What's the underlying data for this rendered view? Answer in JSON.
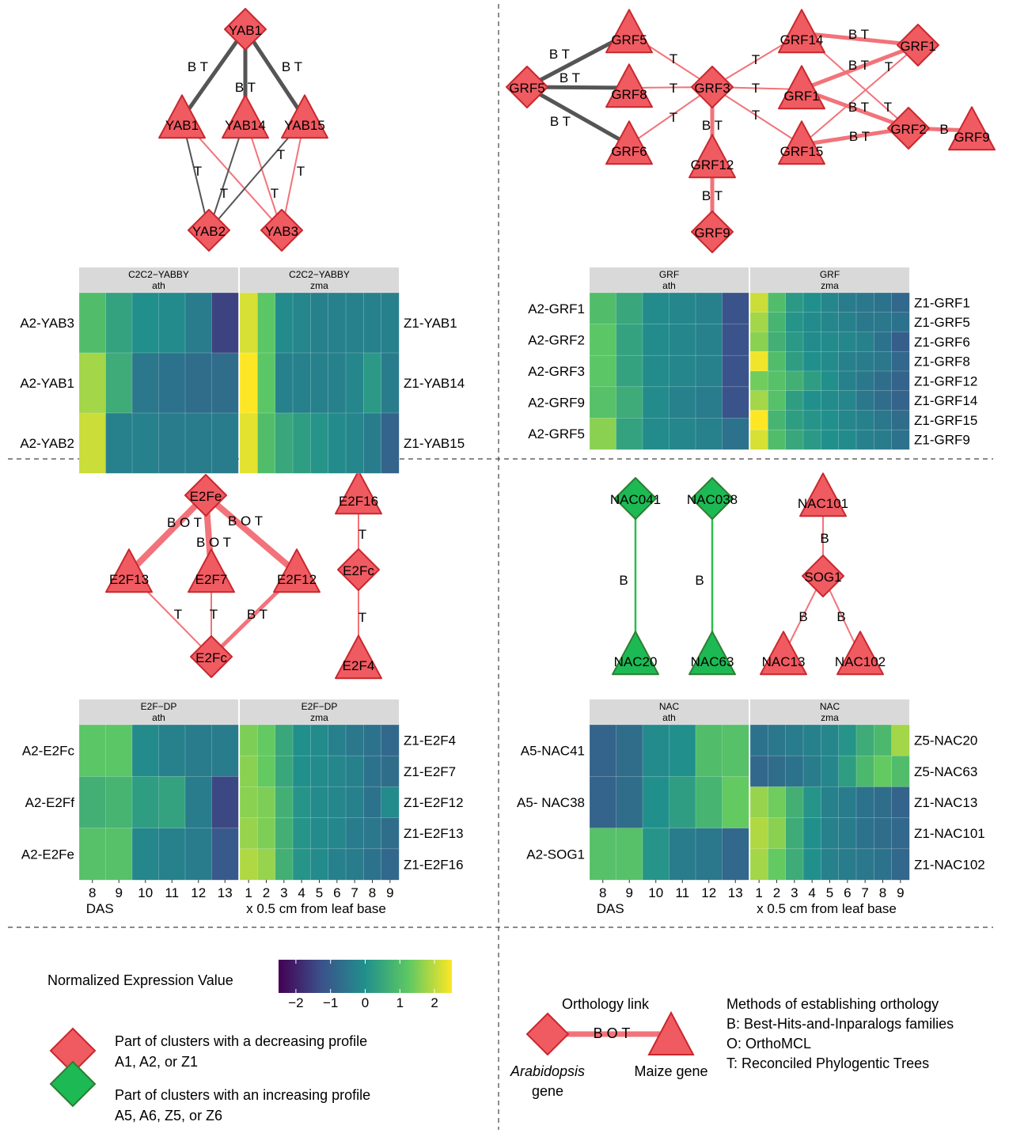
{
  "palette": {
    "red_fill": "#F05A61",
    "red_stroke": "#C8282E",
    "green_fill": "#1DB954",
    "green_stroke": "#2E7D32",
    "edge_red": "#F2737A",
    "edge_dark": "#555555",
    "edge_green": "#2DBE4C",
    "strip": "#D9D9D9",
    "viridis": [
      "#440154",
      "#3B528B",
      "#21908C",
      "#5DC863",
      "#FDE725"
    ]
  },
  "networks": {
    "yabby": {
      "nodes": [
        {
          "id": "YAB1a",
          "label": "YAB1",
          "shape": "diamond",
          "color": "red"
        },
        {
          "id": "YAB1b",
          "label": "YAB1",
          "shape": "triangle",
          "color": "red"
        },
        {
          "id": "YAB14",
          "label": "YAB14",
          "shape": "triangle",
          "color": "red"
        },
        {
          "id": "YAB15",
          "label": "YAB15",
          "shape": "triangle",
          "color": "red"
        },
        {
          "id": "YAB2",
          "label": "YAB2",
          "shape": "diamond",
          "color": "red"
        },
        {
          "id": "YAB3",
          "label": "YAB3",
          "shape": "diamond",
          "color": "red"
        }
      ],
      "edges": [
        {
          "from": "YAB1a",
          "to": "YAB1b",
          "label": "B T",
          "style": "dark-thick"
        },
        {
          "from": "YAB1a",
          "to": "YAB14",
          "label": "B T",
          "style": "dark-thick"
        },
        {
          "from": "YAB1a",
          "to": "YAB15",
          "label": "B T",
          "style": "dark-thick"
        },
        {
          "from": "YAB1b",
          "to": "YAB2",
          "label": "T",
          "style": "dark-thin"
        },
        {
          "from": "YAB1b",
          "to": "YAB3",
          "label": "",
          "style": "red-thin"
        },
        {
          "from": "YAB14",
          "to": "YAB2",
          "label": "T",
          "style": "dark-thin"
        },
        {
          "from": "YAB14",
          "to": "YAB3",
          "label": "T",
          "style": "red-thin"
        },
        {
          "from": "YAB15",
          "to": "YAB2",
          "label": "T",
          "style": "dark-thin"
        },
        {
          "from": "YAB15",
          "to": "YAB3",
          "label": "T",
          "style": "red-thin"
        }
      ]
    },
    "grf": {
      "nodes": [
        {
          "id": "GRF5d",
          "label": "GRF5",
          "shape": "diamond",
          "color": "red"
        },
        {
          "id": "GRF5t",
          "label": "GRF5",
          "shape": "triangle",
          "color": "red"
        },
        {
          "id": "GRF8",
          "label": "GRF8",
          "shape": "triangle",
          "color": "red"
        },
        {
          "id": "GRF6",
          "label": "GRF6",
          "shape": "triangle",
          "color": "red"
        },
        {
          "id": "GRF3",
          "label": "GRF3",
          "shape": "diamond",
          "color": "red"
        },
        {
          "id": "GRF12",
          "label": "GRF12",
          "shape": "triangle",
          "color": "red"
        },
        {
          "id": "GRF9d",
          "label": "GRF9",
          "shape": "diamond",
          "color": "red"
        },
        {
          "id": "GRF14",
          "label": "GRF14",
          "shape": "triangle",
          "color": "red"
        },
        {
          "id": "GRF1t",
          "label": "GRF1",
          "shape": "triangle",
          "color": "red"
        },
        {
          "id": "GRF15",
          "label": "GRF15",
          "shape": "triangle",
          "color": "red"
        },
        {
          "id": "GRF1d",
          "label": "GRF1",
          "shape": "diamond",
          "color": "red"
        },
        {
          "id": "GRF2",
          "label": "GRF2",
          "shape": "diamond",
          "color": "red"
        },
        {
          "id": "GRF9t",
          "label": "GRF9",
          "shape": "triangle",
          "color": "red"
        }
      ],
      "edges": [
        {
          "from": "GRF5d",
          "to": "GRF5t",
          "label": "B T",
          "style": "dark-thick"
        },
        {
          "from": "GRF5d",
          "to": "GRF8",
          "label": "B T",
          "style": "dark-thick"
        },
        {
          "from": "GRF5d",
          "to": "GRF6",
          "label": "B T",
          "style": "dark-thick"
        },
        {
          "from": "GRF3",
          "to": "GRF5t",
          "label": "T",
          "style": "red-thin"
        },
        {
          "from": "GRF3",
          "to": "GRF8",
          "label": "T",
          "style": "red-thin"
        },
        {
          "from": "GRF3",
          "to": "GRF6",
          "label": "T",
          "style": "red-thin"
        },
        {
          "from": "GRF3",
          "to": "GRF14",
          "label": "T",
          "style": "red-thin"
        },
        {
          "from": "GRF3",
          "to": "GRF1t",
          "label": "T",
          "style": "red-thin"
        },
        {
          "from": "GRF3",
          "to": "GRF15",
          "label": "T",
          "style": "red-thin"
        },
        {
          "from": "GRF3",
          "to": "GRF12",
          "label": "B T",
          "style": "red-thick"
        },
        {
          "from": "GRF12",
          "to": "GRF9d",
          "label": "B T",
          "style": "red-thick"
        },
        {
          "from": "GRF14",
          "to": "GRF1d",
          "label": "B T",
          "style": "red-thick"
        },
        {
          "from": "GRF14",
          "to": "GRF2",
          "label": "T",
          "style": "red-thin"
        },
        {
          "from": "GRF1t",
          "to": "GRF1d",
          "label": "B T",
          "style": "red-thick"
        },
        {
          "from": "GRF1t",
          "to": "GRF2",
          "label": "B T",
          "style": "red-thick"
        },
        {
          "from": "GRF15",
          "to": "GRF1d",
          "label": "T",
          "style": "red-thin"
        },
        {
          "from": "GRF15",
          "to": "GRF2",
          "label": "B T",
          "style": "red-thick"
        },
        {
          "from": "GRF2",
          "to": "GRF9t",
          "label": "B",
          "style": "red-thick"
        }
      ]
    },
    "e2f": {
      "nodes": [
        {
          "id": "E2Fe",
          "label": "E2Fe",
          "shape": "diamond",
          "color": "red"
        },
        {
          "id": "E2F13",
          "label": "E2F13",
          "shape": "triangle",
          "color": "red"
        },
        {
          "id": "E2F7",
          "label": "E2F7",
          "shape": "triangle",
          "color": "red"
        },
        {
          "id": "E2F12",
          "label": "E2F12",
          "shape": "triangle",
          "color": "red"
        },
        {
          "id": "E2Fc1",
          "label": "E2Fc",
          "shape": "diamond",
          "color": "red"
        },
        {
          "id": "E2F16",
          "label": "E2F16",
          "shape": "triangle",
          "color": "red"
        },
        {
          "id": "E2Fc2",
          "label": "E2Fc",
          "shape": "diamond",
          "color": "red"
        },
        {
          "id": "E2F4",
          "label": "E2F4",
          "shape": "triangle",
          "color": "red"
        }
      ],
      "edges": [
        {
          "from": "E2Fe",
          "to": "E2F13",
          "label": "B O T",
          "style": "red-vthick"
        },
        {
          "from": "E2Fe",
          "to": "E2F7",
          "label": "B O T",
          "style": "red-vthick"
        },
        {
          "from": "E2Fe",
          "to": "E2F12",
          "label": "B O T",
          "style": "red-vthick"
        },
        {
          "from": "E2F13",
          "to": "E2Fc1",
          "label": "T",
          "style": "red-thin"
        },
        {
          "from": "E2F7",
          "to": "E2Fc1",
          "label": "T",
          "style": "red-thin"
        },
        {
          "from": "E2F12",
          "to": "E2Fc1",
          "label": "B T",
          "style": "red-thick"
        },
        {
          "from": "E2F16",
          "to": "E2Fc2",
          "label": "T",
          "style": "red-thin"
        },
        {
          "from": "E2Fc2",
          "to": "E2F4",
          "label": "T",
          "style": "red-thin"
        }
      ]
    },
    "nac": {
      "nodes": [
        {
          "id": "NAC041",
          "label": "NAC041",
          "shape": "diamond",
          "color": "green"
        },
        {
          "id": "NAC20",
          "label": "NAC20",
          "shape": "triangle",
          "color": "green"
        },
        {
          "id": "NAC038",
          "label": "NAC038",
          "shape": "diamond",
          "color": "green"
        },
        {
          "id": "NAC63",
          "label": "NAC63",
          "shape": "triangle",
          "color": "green"
        },
        {
          "id": "NAC101",
          "label": "NAC101",
          "shape": "triangle",
          "color": "red"
        },
        {
          "id": "SOG1",
          "label": "SOG1",
          "shape": "diamond",
          "color": "red"
        },
        {
          "id": "NAC13",
          "label": "NAC13",
          "shape": "triangle",
          "color": "red"
        },
        {
          "id": "NAC102",
          "label": "NAC102",
          "shape": "triangle",
          "color": "red"
        }
      ],
      "edges": [
        {
          "from": "NAC041",
          "to": "NAC20",
          "label": "B",
          "style": "green"
        },
        {
          "from": "NAC038",
          "to": "NAC63",
          "label": "B",
          "style": "green"
        },
        {
          "from": "NAC101",
          "to": "SOG1",
          "label": "B",
          "style": "red-thin"
        },
        {
          "from": "SOG1",
          "to": "NAC13",
          "label": "B",
          "style": "red-thin"
        },
        {
          "from": "SOG1",
          "to": "NAC102",
          "label": "B",
          "style": "red-thin"
        }
      ]
    }
  },
  "heatmaps": {
    "yabby": {
      "ath": {
        "strip": [
          "C2C2−YABBY",
          "ath"
        ],
        "rows": [
          "A2-YAB3",
          "A2-YAB1",
          "A2-YAB2"
        ],
        "values": [
          [
            1.0,
            0.4,
            0.0,
            -0.1,
            -0.4,
            -1.5
          ],
          [
            1.8,
            0.6,
            -0.5,
            -0.6,
            -0.7,
            -0.7
          ],
          [
            2.1,
            -0.3,
            -0.3,
            -0.4,
            -0.4,
            -0.4
          ]
        ]
      },
      "zma": {
        "strip": [
          "C2C2−YABBY",
          "zma"
        ],
        "rows": [
          "Z1-YAB1",
          "Z1-YAB14",
          "Z1-YAB15"
        ],
        "values": [
          [
            2.2,
            1.2,
            -0.1,
            -0.2,
            -0.3,
            -0.3,
            -0.3,
            -0.3,
            -0.3
          ],
          [
            2.6,
            1.2,
            -0.3,
            -0.3,
            -0.3,
            -0.3,
            -0.2,
            0.2,
            -0.4
          ],
          [
            2.3,
            1.0,
            0.5,
            0.3,
            0.1,
            -0.1,
            -0.2,
            -0.4,
            -0.9
          ]
        ]
      }
    },
    "grf": {
      "ath": {
        "strip": [
          "GRF",
          "ath"
        ],
        "rows": [
          "A2-GRF1",
          "A2-GRF2",
          "A2-GRF3",
          "A2-GRF9",
          "A2-GRF5"
        ],
        "values": [
          [
            1.0,
            0.5,
            -0.1,
            -0.2,
            -0.3,
            -1.2
          ],
          [
            1.2,
            0.4,
            -0.1,
            -0.2,
            -0.3,
            -1.2
          ],
          [
            1.2,
            0.4,
            -0.1,
            -0.2,
            -0.3,
            -1.2
          ],
          [
            1.1,
            0.6,
            -0.1,
            -0.3,
            -0.4,
            -1.2
          ],
          [
            1.6,
            0.4,
            -0.1,
            -0.2,
            -0.3,
            -0.6
          ]
        ]
      },
      "zma": {
        "strip": [
          "GRF",
          "zma"
        ],
        "rows": [
          "Z1-GRF1",
          "Z1-GRF5",
          "Z1-GRF6",
          "Z1-GRF8",
          "Z1-GRF12",
          "Z1-GRF14",
          "Z1-GRF15",
          "Z1-GRF9"
        ],
        "values": [
          [
            2.1,
            1.0,
            0.2,
            0.0,
            -0.2,
            -0.4,
            -0.5,
            -0.6,
            -0.8
          ],
          [
            1.8,
            0.8,
            0.1,
            -0.1,
            -0.2,
            -0.3,
            -0.5,
            -0.5,
            -0.6
          ],
          [
            1.6,
            0.7,
            0.2,
            -0.1,
            -0.1,
            -0.2,
            -0.3,
            -0.6,
            -1.0
          ],
          [
            2.4,
            1.0,
            0.3,
            0.0,
            -0.1,
            -0.3,
            -0.4,
            -0.5,
            -0.8
          ],
          [
            1.4,
            1.1,
            0.7,
            0.3,
            0.0,
            -0.3,
            -0.5,
            -0.7,
            -0.9
          ],
          [
            1.8,
            1.1,
            0.3,
            0.0,
            -0.1,
            -0.2,
            -0.5,
            -0.7,
            -0.9
          ],
          [
            2.6,
            0.8,
            0.3,
            0.1,
            0.0,
            -0.2,
            -0.3,
            -0.5,
            -0.7
          ],
          [
            2.2,
            1.0,
            0.5,
            0.2,
            0.0,
            -0.1,
            -0.3,
            -0.4,
            -0.6
          ]
        ]
      }
    },
    "e2f": {
      "ath": {
        "strip": [
          "E2F−DP",
          "ath"
        ],
        "rows": [
          "A2-E2Fc",
          "A2-E2Ff",
          "A2-E2Fe"
        ],
        "values": [
          [
            1.2,
            1.2,
            -0.1,
            -0.3,
            -0.4,
            -0.4
          ],
          [
            0.7,
            0.8,
            0.3,
            0.4,
            -0.4,
            -1.4
          ],
          [
            1.1,
            1.1,
            -0.2,
            -0.3,
            -0.4,
            -1.1
          ]
        ]
      },
      "zma": {
        "strip": [
          "E2F−DP",
          "zma"
        ],
        "rows": [
          "Z1-E2F4",
          "Z1-E2F7",
          "Z1-E2F12",
          "Z1-E2F13",
          "Z1-E2F16"
        ],
        "values": [
          [
            1.5,
            1.3,
            0.5,
            0.0,
            -0.1,
            -0.3,
            -0.5,
            -0.6,
            -0.8
          ],
          [
            1.6,
            1.3,
            0.5,
            0.0,
            -0.1,
            -0.2,
            -0.3,
            -0.6,
            -0.7
          ],
          [
            1.6,
            1.5,
            0.7,
            0.1,
            -0.1,
            -0.2,
            -0.3,
            -0.6,
            -0.1
          ],
          [
            1.7,
            1.5,
            0.7,
            0.1,
            -0.1,
            -0.2,
            -0.4,
            -0.5,
            -0.7
          ],
          [
            1.9,
            1.7,
            0.7,
            0.1,
            -0.1,
            -0.3,
            -0.4,
            -0.6,
            -0.8
          ]
        ]
      }
    },
    "nac": {
      "ath": {
        "strip": [
          "NAC",
          "ath"
        ],
        "rows": [
          "A5-NAC41",
          "A5- NAC38",
          "A2-SOG1"
        ],
        "values": [
          [
            -0.9,
            -0.7,
            -0.1,
            0.0,
            1.0,
            1.1
          ],
          [
            -0.9,
            -0.7,
            0.0,
            0.3,
            0.8,
            1.3
          ],
          [
            1.1,
            1.1,
            0.1,
            -0.4,
            -0.5,
            -0.8
          ]
        ]
      },
      "zma": {
        "strip": [
          "NAC",
          "zma"
        ],
        "rows": [
          "Z5-NAC20",
          "Z5-NAC63",
          "Z1-NAC13",
          "Z1-NAC101",
          "Z1-NAC102"
        ],
        "values": [
          [
            -0.6,
            -0.5,
            -0.4,
            -0.3,
            -0.2,
            0.1,
            0.6,
            0.9,
            1.8
          ],
          [
            -0.8,
            -0.7,
            -0.6,
            -0.4,
            -0.2,
            0.3,
            0.9,
            1.3,
            1.0
          ],
          [
            1.7,
            1.4,
            0.7,
            0.1,
            -0.3,
            -0.4,
            -0.6,
            -0.7,
            -0.9
          ],
          [
            1.9,
            1.6,
            0.6,
            0.0,
            -0.3,
            -0.4,
            -0.6,
            -0.7,
            -0.8
          ],
          [
            1.8,
            1.3,
            0.6,
            0.0,
            -0.3,
            -0.4,
            -0.5,
            -0.6,
            -0.8
          ]
        ]
      }
    }
  },
  "axes": {
    "ath_ticks": [
      "8",
      "9",
      "10",
      "11",
      "12",
      "13"
    ],
    "zma_ticks": [
      "1",
      "2",
      "3",
      "4",
      "5",
      "6",
      "7",
      "8",
      "9"
    ],
    "ath_label": "DAS",
    "zma_label": "x 0.5 cm from leaf base"
  },
  "legend": {
    "colorbar_title": "Normalized Expression Value",
    "colorbar_ticks": [
      "−2",
      "−1",
      "0",
      "1",
      "2"
    ],
    "decreasing": [
      "Part of clusters with a decreasing profile",
      "A1, A2, or Z1"
    ],
    "increasing": [
      "Part of clusters with an increasing profile",
      "A5, A6, Z5, or Z6"
    ],
    "orthology_link": "Orthology link",
    "example_edge_label": "B O T",
    "arabidopsis_gene": [
      "Arabidopsis",
      "gene"
    ],
    "maize_gene": "Maize gene",
    "methods": [
      "Methods of establishing orthology",
      "B: Best-Hits-and-Inparalogs families",
      "O: OrthoMCL",
      "T: Reconciled Phylogentic Trees"
    ]
  }
}
